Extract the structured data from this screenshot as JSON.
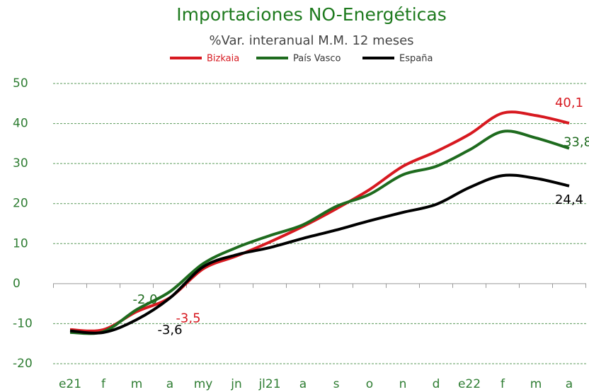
{
  "chart_data": {
    "type": "line",
    "title": "Importaciones NO-Energéticas",
    "subtitle": "%Var. interanual M.M. 12 meses",
    "categories": [
      "e21",
      "f",
      "m",
      "a",
      "my",
      "jn",
      "jl21",
      "a",
      "s",
      "o",
      "n",
      "d",
      "e22",
      "f",
      "m",
      "a"
    ],
    "series": [
      {
        "name": "Bizkaia",
        "color": "#d71920",
        "values": [
          -11.5,
          -11.5,
          -7,
          -3.5,
          3.7,
          6.9,
          10.4,
          14.3,
          18.7,
          23.5,
          29.3,
          33,
          37.3,
          42.6,
          42,
          40.1
        ],
        "value_labels": [
          null,
          null,
          null,
          "-3,5",
          null,
          null,
          null,
          null,
          null,
          null,
          null,
          null,
          null,
          null,
          null,
          "40,1"
        ]
      },
      {
        "name": "País Vasco",
        "color": "#1e6b1e",
        "values": [
          -12.2,
          -12,
          -6.5,
          -2,
          5,
          9,
          12,
          14.7,
          19.3,
          22.3,
          27.2,
          29.3,
          33.4,
          38,
          36.4,
          33.8
        ],
        "value_labels": [
          null,
          null,
          null,
          "-2,0",
          null,
          null,
          null,
          null,
          null,
          null,
          null,
          null,
          null,
          null,
          null,
          "33,8"
        ]
      },
      {
        "name": "España",
        "color": "#000000",
        "values": [
          -11.8,
          -12.2,
          -9,
          -3.6,
          4.2,
          7.2,
          9,
          11.3,
          13.4,
          15.7,
          17.8,
          19.8,
          24,
          27,
          26.3,
          24.4
        ],
        "value_labels": [
          null,
          null,
          null,
          "-3,6",
          null,
          null,
          null,
          null,
          null,
          null,
          null,
          null,
          null,
          null,
          null,
          "24,4"
        ]
      }
    ],
    "ylim": [
      -20,
      50
    ],
    "yticks": [
      -20,
      -10,
      0,
      10,
      20,
      30,
      40,
      50
    ],
    "grid": true
  }
}
